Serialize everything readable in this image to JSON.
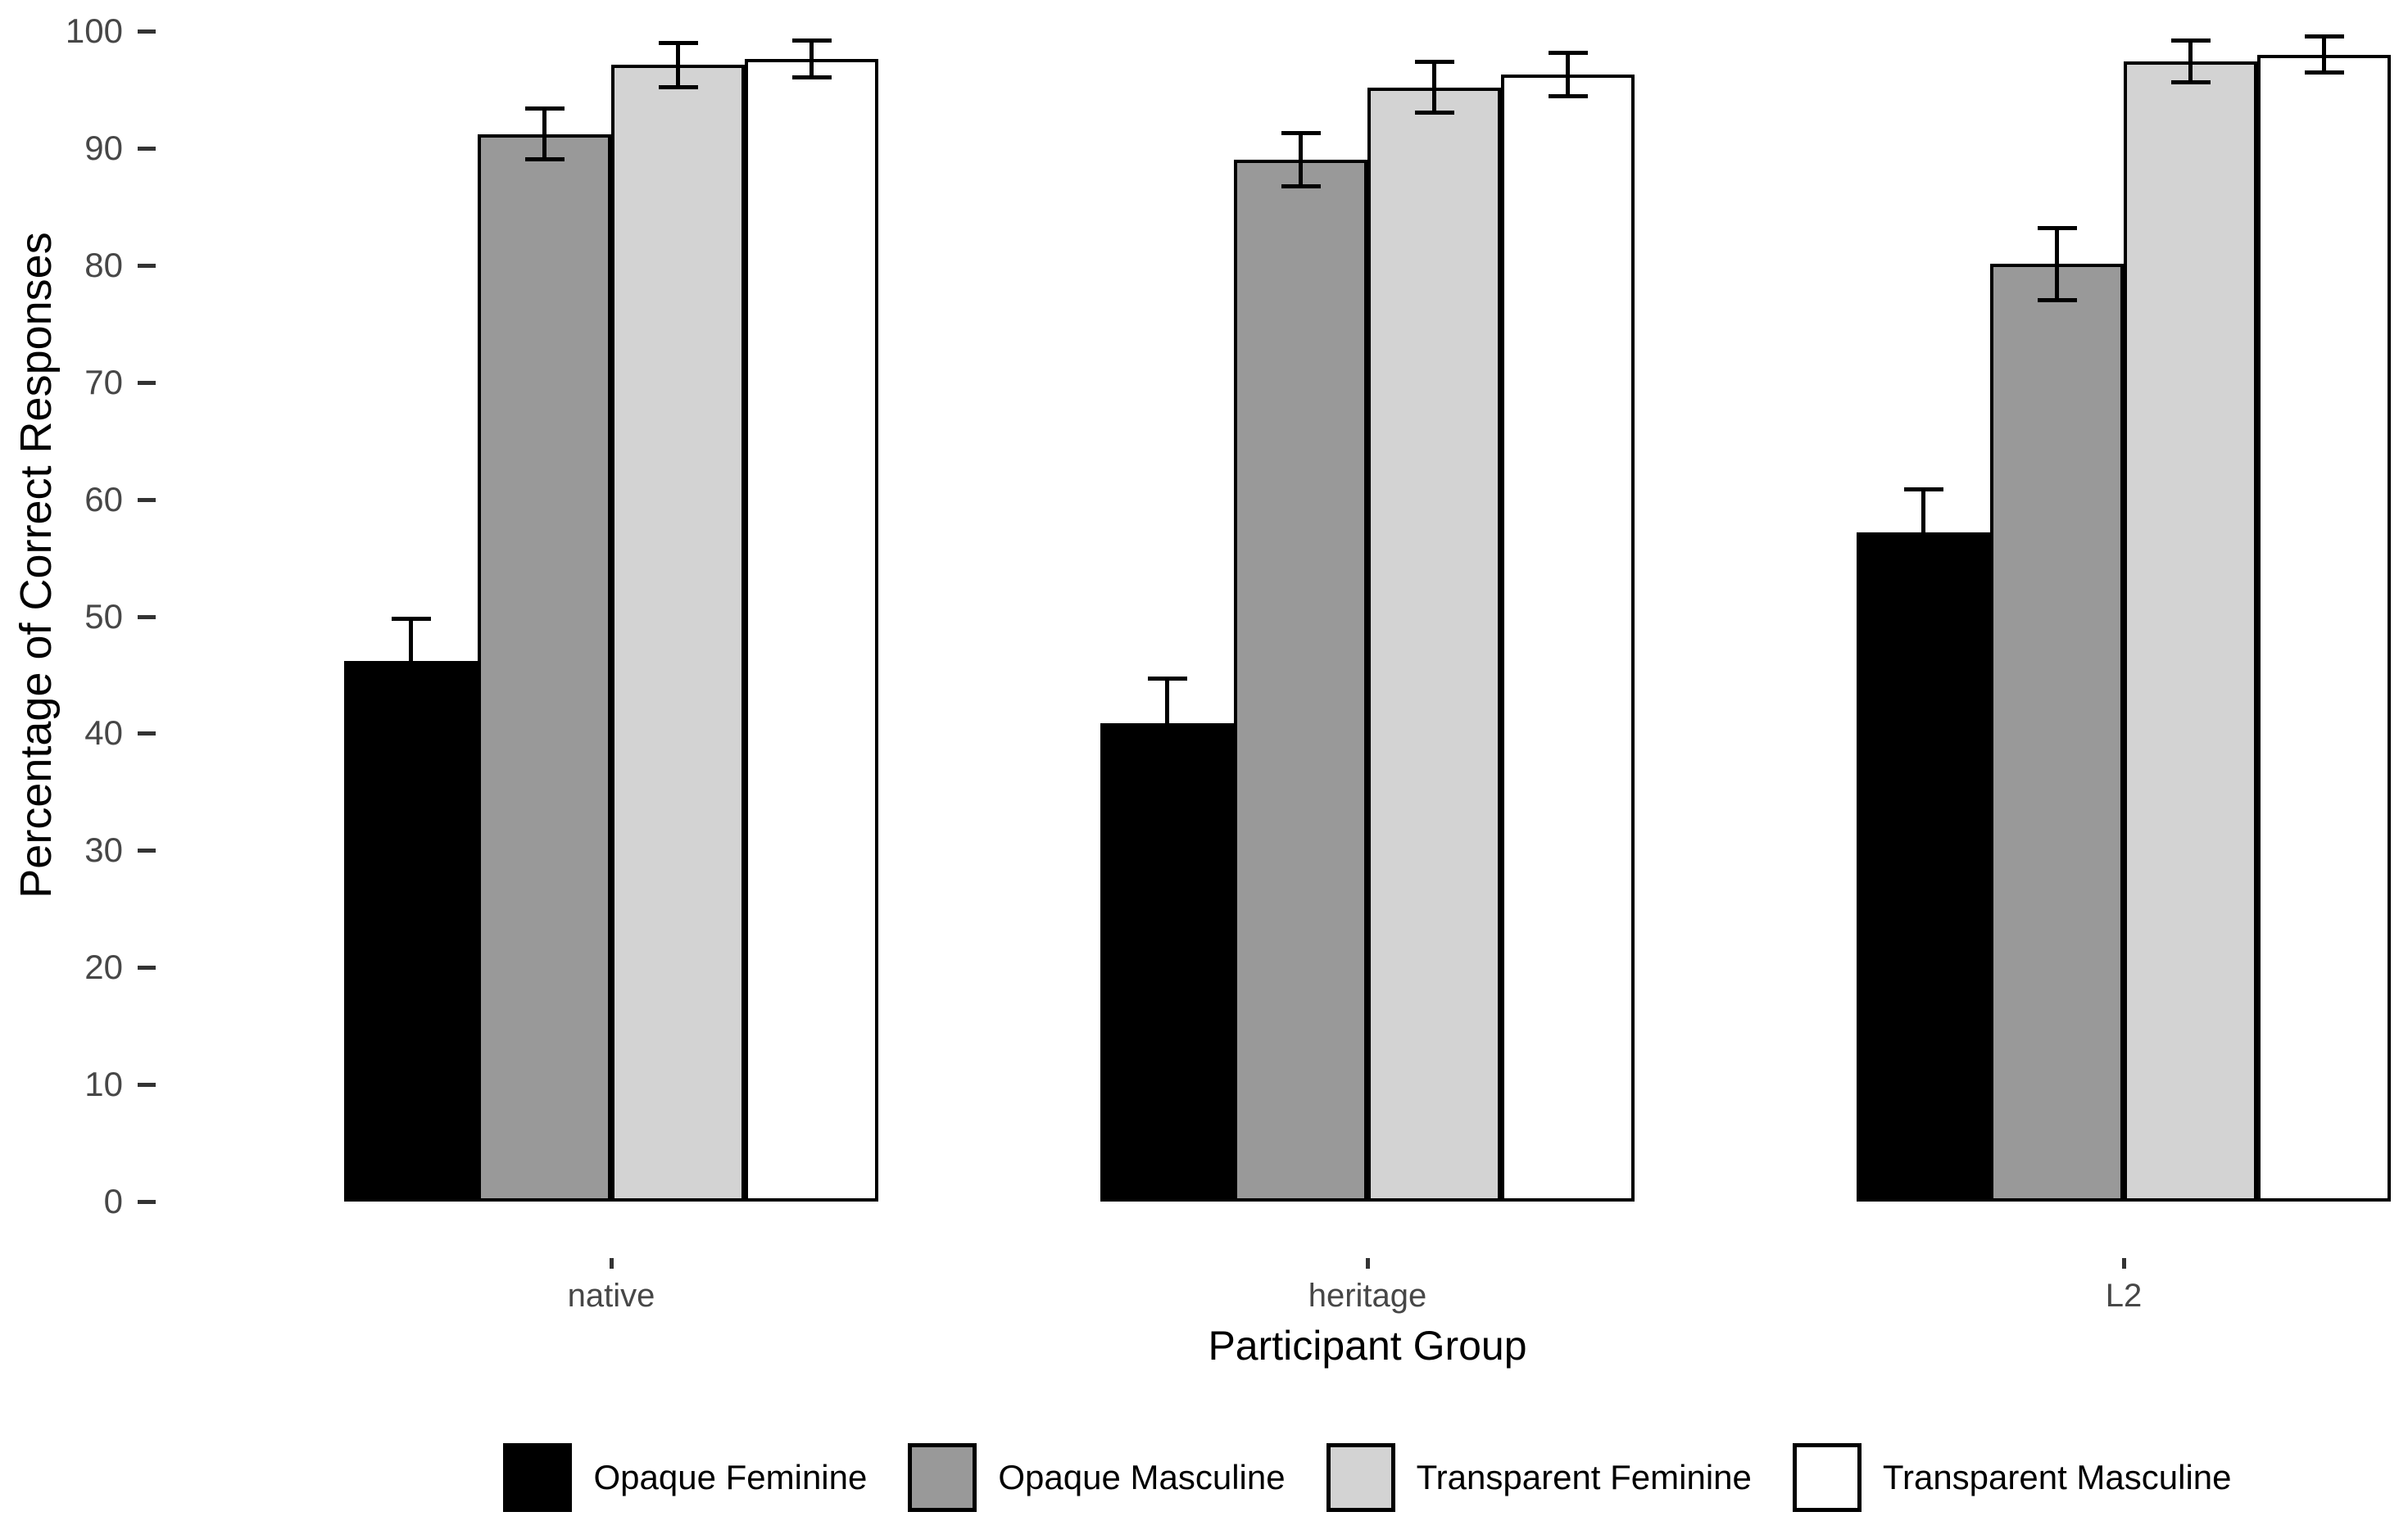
{
  "chart_data": {
    "type": "bar",
    "title": "",
    "xlabel": "Participant Group",
    "ylabel": "Percentage of Correct Responses",
    "categories": [
      "native",
      "heritage",
      "L2"
    ],
    "series": [
      {
        "name": "Opaque Feminine",
        "fill": "#000000",
        "values": [
          46.2,
          40.9,
          57.2
        ],
        "errors": [
          3.6,
          3.8,
          3.7
        ]
      },
      {
        "name": "Opaque Masculine",
        "fill": "#999999",
        "values": [
          91.2,
          89.0,
          80.1
        ],
        "errors": [
          2.2,
          2.3,
          3.1
        ]
      },
      {
        "name": "Transparent Feminine",
        "fill": "#d3d3d3",
        "values": [
          97.1,
          95.2,
          97.4
        ],
        "errors": [
          1.9,
          2.2,
          1.8
        ]
      },
      {
        "name": "Transparent Masculine",
        "fill": "#ffffff",
        "values": [
          97.6,
          96.3,
          98.0
        ],
        "errors": [
          1.6,
          1.9,
          1.6
        ]
      }
    ],
    "ylim": [
      0,
      100
    ],
    "yticks": [
      0,
      10,
      20,
      30,
      40,
      50,
      60,
      70,
      80,
      90,
      100
    ],
    "bar_outline": "#000000",
    "error_bar_color": "#000000",
    "legend_position": "bottom",
    "grid": false,
    "background": "#ffffff"
  }
}
